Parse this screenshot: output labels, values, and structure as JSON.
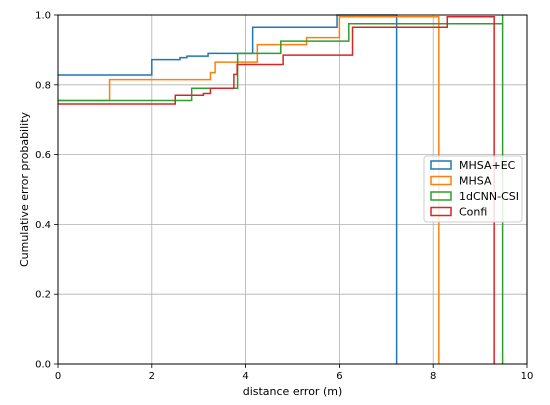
{
  "chart_data": {
    "type": "line",
    "title": "",
    "xlabel": "distance error (m)",
    "ylabel": "Cumulative error probability",
    "xlim": [
      0,
      10
    ],
    "ylim": [
      0,
      1.0
    ],
    "xticks": [
      0,
      2,
      4,
      6,
      8,
      10
    ],
    "yticks": [
      0.0,
      0.2,
      0.4,
      0.6,
      0.8,
      1.0
    ],
    "xtick_labels": [
      "0",
      "2",
      "4",
      "6",
      "8",
      "10"
    ],
    "ytick_labels": [
      "0.0",
      "0.2",
      "0.4",
      "0.6",
      "0.8",
      "1.0"
    ],
    "grid": true,
    "legend_position": "center-right",
    "step": "post",
    "series": [
      {
        "name": "MHSA+EC",
        "color": "#1f77b4",
        "x": [
          0,
          2.0,
          2.6,
          2.75,
          3.2,
          3.8,
          4.15,
          5.95,
          7.22,
          7.22
        ],
        "y": [
          0.828,
          0.872,
          0.878,
          0.882,
          0.89,
          0.89,
          0.965,
          1.0,
          1.0,
          0.0
        ]
      },
      {
        "name": "MHSA",
        "color": "#ff7f0e",
        "x": [
          0,
          1.1,
          3.25,
          3.35,
          3.9,
          4.25,
          5.3,
          6.0,
          8.12,
          8.12
        ],
        "y": [
          0.755,
          0.815,
          0.835,
          0.865,
          0.865,
          0.915,
          0.935,
          0.995,
          0.995,
          0.0
        ]
      },
      {
        "name": "1dCNN-CSI",
        "color": "#2ca02c",
        "x": [
          0,
          2.85,
          3.8,
          3.83,
          4.75,
          5.5,
          6.2,
          8.3,
          9.48,
          9.48
        ],
        "y": [
          0.755,
          0.79,
          0.79,
          0.89,
          0.925,
          0.925,
          0.975,
          0.975,
          1.0,
          0.0
        ]
      },
      {
        "name": "Confi",
        "color": "#d62728",
        "x": [
          0,
          2.5,
          3.1,
          3.25,
          3.75,
          3.82,
          4.8,
          6.28,
          8.3,
          9.3,
          9.3
        ],
        "y": [
          0.745,
          0.77,
          0.775,
          0.79,
          0.83,
          0.858,
          0.885,
          0.965,
          0.995,
          0.995,
          0.0
        ]
      }
    ]
  }
}
